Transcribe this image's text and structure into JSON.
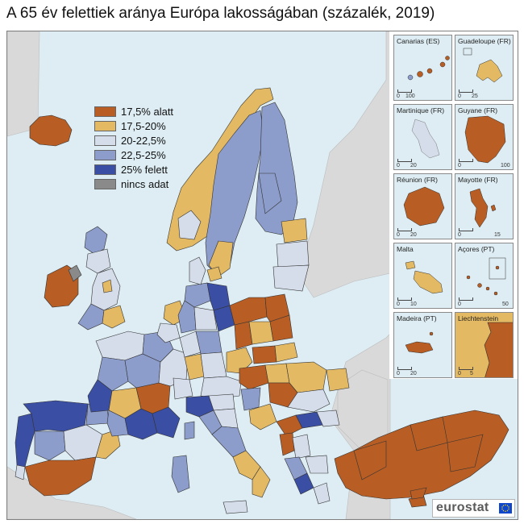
{
  "title": "A 65 év felettiek aránya Európa lakosságában (százalék, 2019)",
  "colors": {
    "sea": "#ddedf3",
    "non_eu_land": "#d9d9d9",
    "border": "#333333",
    "class_1": "#b85d23",
    "class_2": "#e3b963",
    "class_3": "#d5ddeb",
    "class_4": "#8c9ccb",
    "class_5": "#3a4ea3",
    "class_na": "#8a8a8a"
  },
  "legend": [
    {
      "label": "17,5% alatt",
      "color": "#b85d23"
    },
    {
      "label": "17,5-20%",
      "color": "#e3b963"
    },
    {
      "label": "20-22,5%",
      "color": "#d5ddeb"
    },
    {
      "label": "22,5-25%",
      "color": "#8c9ccb"
    },
    {
      "label": "25% felett",
      "color": "#3a4ea3"
    },
    {
      "label": "nincs adat",
      "color": "#8a8a8a"
    }
  ],
  "insets": [
    {
      "name": "Canarias (ES)",
      "scale_value": "100"
    },
    {
      "name": "Guadeloupe (FR)",
      "scale_value": "25"
    },
    {
      "name": "Martinique (FR)",
      "scale_value": "20"
    },
    {
      "name": "Guyane (FR)",
      "scale_value": "100"
    },
    {
      "name": "Réunion (FR)",
      "scale_value": "20"
    },
    {
      "name": "Mayotte (FR)",
      "scale_value": "15"
    },
    {
      "name": "Malta",
      "scale_value": "10"
    },
    {
      "name": "Açores (PT)",
      "scale_value": "50"
    },
    {
      "name": "Madeira (PT)",
      "scale_value": "20"
    },
    {
      "name": "Liechtenstein",
      "scale_value": "5"
    }
  ],
  "scale_zero": "0",
  "logo": {
    "text": "eurostat"
  }
}
